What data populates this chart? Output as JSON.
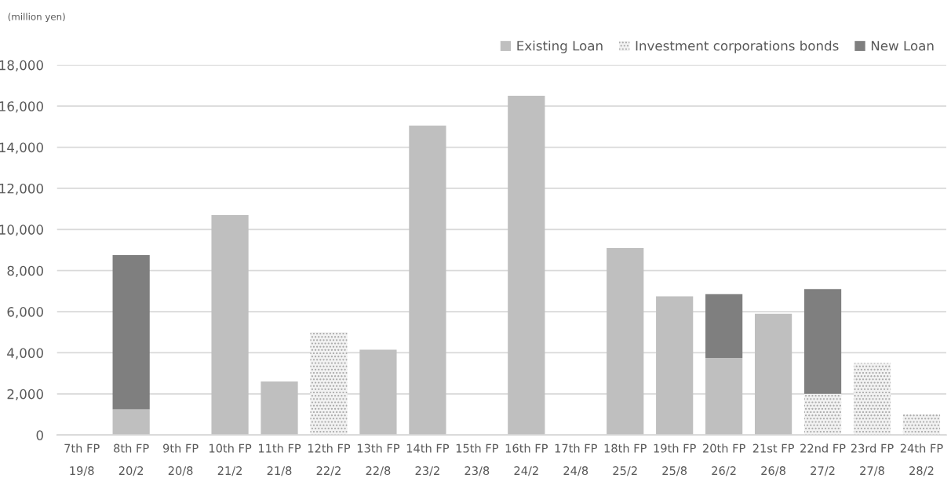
{
  "chart_data": {
    "type": "bar",
    "stacked": true,
    "ylabel": "(million yen)",
    "categories": [
      "7th FP\n19/8",
      "8th FP\n20/2",
      "9th FP\n20/8",
      "10th FP\n21/2",
      "11th FP\n21/8",
      "12th FP\n22/2",
      "13th FP\n22/8",
      "14th FP\n23/2",
      "15th FP\n23/8",
      "16th FP\n24/2",
      "17th FP\n24/8",
      "18th FP\n25/2",
      "19th FP\n25/8",
      "20th FP\n26/2",
      "21st FP\n26/8",
      "22nd FP\n27/2",
      "23rd FP\n27/8",
      "24th FP\n28/2"
    ],
    "series": [
      {
        "name": "Existing Loan",
        "color": "#bfbfbf",
        "values": [
          null,
          1250,
          null,
          10700,
          2600,
          null,
          4150,
          15050,
          null,
          16500,
          null,
          9100,
          6750,
          3750,
          5900,
          null,
          null,
          null
        ]
      },
      {
        "name": "Investment corporations bonds",
        "color": "#f2f2f2",
        "values": [
          null,
          null,
          null,
          null,
          null,
          5000,
          null,
          null,
          null,
          null,
          null,
          null,
          null,
          null,
          null,
          2000,
          3500,
          1000
        ]
      },
      {
        "name": "New Loan",
        "color": "#7f7f7f",
        "values": [
          null,
          7500,
          null,
          null,
          null,
          null,
          null,
          null,
          null,
          null,
          null,
          null,
          null,
          3100,
          null,
          5100,
          null,
          null
        ]
      }
    ],
    "ylim": [
      0,
      18000
    ],
    "yticks": [
      {
        "value": 0,
        "label": "0"
      },
      {
        "value": 2000,
        "label": "2,000"
      },
      {
        "value": 4000,
        "label": "4,000"
      },
      {
        "value": 6000,
        "label": "6,000"
      },
      {
        "value": 8000,
        "label": "8,000"
      },
      {
        "value": 10000,
        "label": "10,000"
      },
      {
        "value": 12000,
        "label": "12,000"
      },
      {
        "value": 14000,
        "label": "14,000"
      },
      {
        "value": 16000,
        "label": "16,000"
      },
      {
        "value": 18000,
        "label": "18,000"
      }
    ],
    "grid": "y",
    "legend": "top right"
  }
}
